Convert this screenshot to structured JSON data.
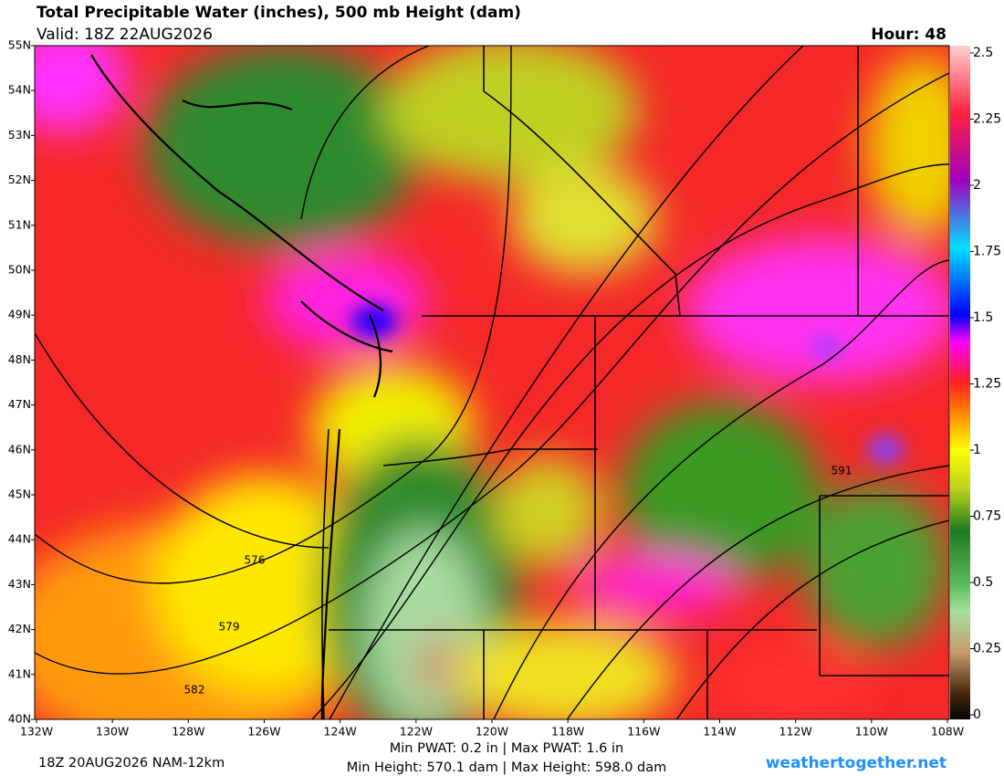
{
  "header": {
    "title": "Total Precipitable Water (inches), 500 mb Height (dam)",
    "valid": "Valid: 18Z 22AUG2026",
    "hour": "Hour: 48"
  },
  "map": {
    "lat_labels": [
      "55N",
      "54N",
      "53N",
      "52N",
      "51N",
      "50N",
      "49N",
      "48N",
      "47N",
      "46N",
      "45N",
      "44N",
      "43N",
      "42N",
      "41N",
      "40N"
    ],
    "lon_labels": [
      "132W",
      "130W",
      "128W",
      "126W",
      "124W",
      "122W",
      "120W",
      "118W",
      "116W",
      "114W",
      "112W",
      "110W",
      "108W"
    ],
    "contour_labels": [
      "576",
      "579",
      "582",
      "591"
    ]
  },
  "colorbar": {
    "lim": [
      0,
      2.5
    ],
    "ticks": [
      0,
      0.25,
      0.5,
      0.75,
      1,
      1.25,
      1.5,
      1.75,
      2,
      2.25,
      2.5
    ]
  },
  "footer": {
    "run": "18Z 20AUG2026 NAM-12km",
    "pwat": "Min PWAT:   0.2 in | Max PWAT:   1.6 in",
    "heights": "Min Height: 570.1 dam | Max Height: 598.0 dam",
    "site": "weathertogether.net"
  }
}
